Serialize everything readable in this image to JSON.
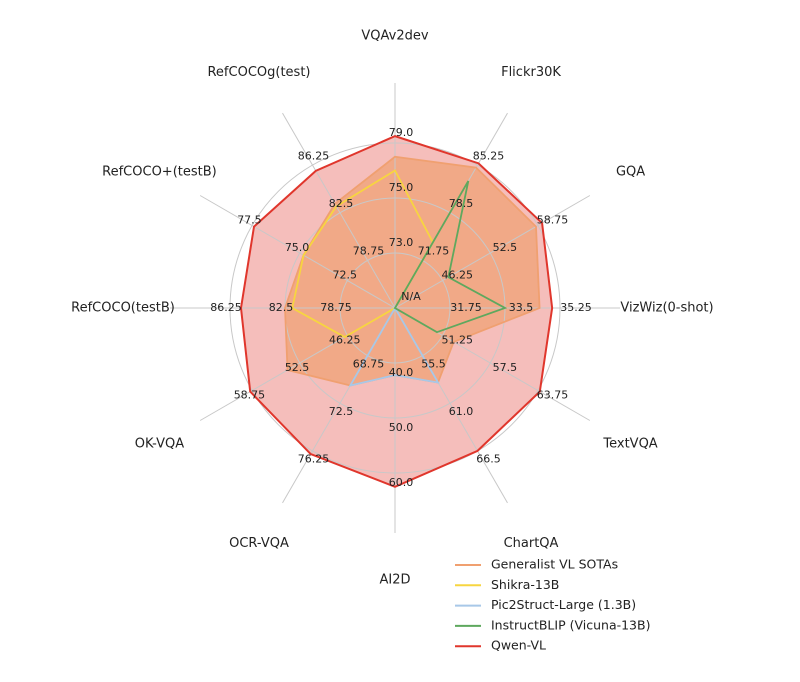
{
  "chart_data": {
    "type": "radar",
    "center_label": "N/A",
    "legend": "lower right",
    "axes": [
      {
        "label": "VQAv2dev",
        "ticks": [
          {
            "value": 73,
            "label": "73.0"
          },
          {
            "value": 75,
            "label": "75.0"
          },
          {
            "value": 79,
            "label": "79.0"
          }
        ]
      },
      {
        "label": "Flickr30K",
        "ticks": [
          71.75,
          78.5,
          85.25
        ]
      },
      {
        "label": "GQA",
        "ticks": [
          46.25,
          52.5,
          58.75
        ]
      },
      {
        "label": "VizWiz(0-shot)",
        "ticks": [
          31.75,
          33.5,
          35.25
        ]
      },
      {
        "label": "TextVQA",
        "ticks": [
          51.25,
          57.5,
          63.75
        ]
      },
      {
        "label": "ChartQA",
        "ticks": [
          55.5,
          {
            "value": 61,
            "label": "61.0"
          },
          66.5
        ]
      },
      {
        "label": "AI2D",
        "ticks": [
          {
            "value": 40,
            "label": "40.0"
          },
          {
            "value": 50,
            "label": "50.0"
          },
          {
            "value": 60,
            "label": "60.0"
          }
        ]
      },
      {
        "label": "OCR-VQA",
        "ticks": [
          68.75,
          72.5,
          76.25
        ]
      },
      {
        "label": "OK-VQA",
        "ticks": [
          46.25,
          52.5,
          58.75
        ]
      },
      {
        "label": "RefCOCO(testB)",
        "ticks": [
          78.75,
          82.5,
          86.25
        ]
      },
      {
        "label": "RefCOCO+(testB)",
        "ticks": [
          72.5,
          {
            "value": 75,
            "label": "75.0"
          },
          77.5
        ]
      },
      {
        "label": "RefCOCOg(test)",
        "ticks": [
          78.75,
          82.5,
          86.25
        ]
      }
    ],
    "series": [
      {
        "name": "Generalist VL SOTAs",
        "color": "#f0a070",
        "fill": true,
        "values": [
          78.0,
          84.9,
          58.5,
          34.6,
          52.7,
          58.6,
          42.2,
          71.1,
          54.1,
          82.5,
          74.8,
          83.2
        ]
      },
      {
        "name": "Shikra-13B",
        "color": "#f7d540",
        "fill": false,
        "values": [
          77.0,
          74.3,
          null,
          null,
          null,
          null,
          null,
          null,
          46.6,
          82.0,
          74.8,
          83.0
        ]
      },
      {
        "name": "Pic2Struct-Large (1.3B)",
        "color": "#a8c8e8",
        "fill": false,
        "values": [
          null,
          null,
          null,
          null,
          null,
          58.6,
          42.2,
          71.1,
          null,
          null,
          null,
          null
        ]
      },
      {
        "name": "InstructBLIP (Vicuna-13B)",
        "color": "#5ea85e",
        "fill": false,
        "values": [
          null,
          83.0,
          47.0,
          33.5,
          50.5,
          null,
          null,
          null,
          null,
          null,
          null,
          null
        ]
      },
      {
        "name": "Qwen-VL",
        "color": "#e0362c",
        "fill": true,
        "values": [
          79.5,
          85.5,
          59.3,
          35.0,
          64.0,
          66.5,
          62.5,
          76.5,
          59.0,
          85.5,
          77.4,
          85.8
        ]
      }
    ]
  }
}
